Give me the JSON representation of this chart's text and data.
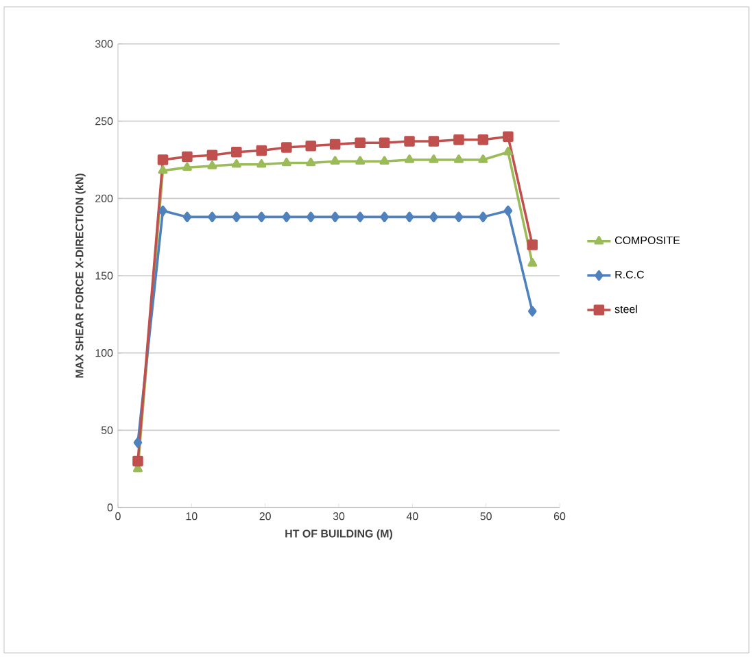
{
  "chart_data": {
    "type": "line",
    "xlabel": "HT OF BUILDING (M)",
    "ylabel": "MAX SHEAR FORCE  X-DIRECTION (kN)",
    "x": [
      2.7,
      6.1,
      9.4,
      12.8,
      16.1,
      19.5,
      22.9,
      26.2,
      29.5,
      32.9,
      36.2,
      39.6,
      42.9,
      46.3,
      49.6,
      53.0,
      56.3
    ],
    "xlim": [
      0,
      60
    ],
    "xticks": [
      0,
      10,
      20,
      30,
      40,
      50,
      60
    ],
    "ylim": [
      0,
      300
    ],
    "yticks": [
      0,
      50,
      100,
      150,
      200,
      250,
      300
    ],
    "grid": "y",
    "legend": "right",
    "series": [
      {
        "name": "COMPOSITE",
        "color": "#9bbb59",
        "marker": "triangle",
        "values": [
          25,
          218,
          220,
          221,
          222,
          222,
          223,
          223,
          224,
          224,
          224,
          225,
          225,
          225,
          225,
          230,
          158
        ]
      },
      {
        "name": "R.C.C",
        "color": "#4f81bd",
        "marker": "diamond",
        "values": [
          42,
          192,
          188,
          188,
          188,
          188,
          188,
          188,
          188,
          188,
          188,
          188,
          188,
          188,
          188,
          192,
          127
        ]
      },
      {
        "name": "steel",
        "color": "#c0504d",
        "marker": "square",
        "values": [
          30,
          225,
          227,
          228,
          230,
          231,
          233,
          234,
          235,
          236,
          236,
          237,
          237,
          238,
          238,
          240,
          170
        ]
      }
    ]
  }
}
